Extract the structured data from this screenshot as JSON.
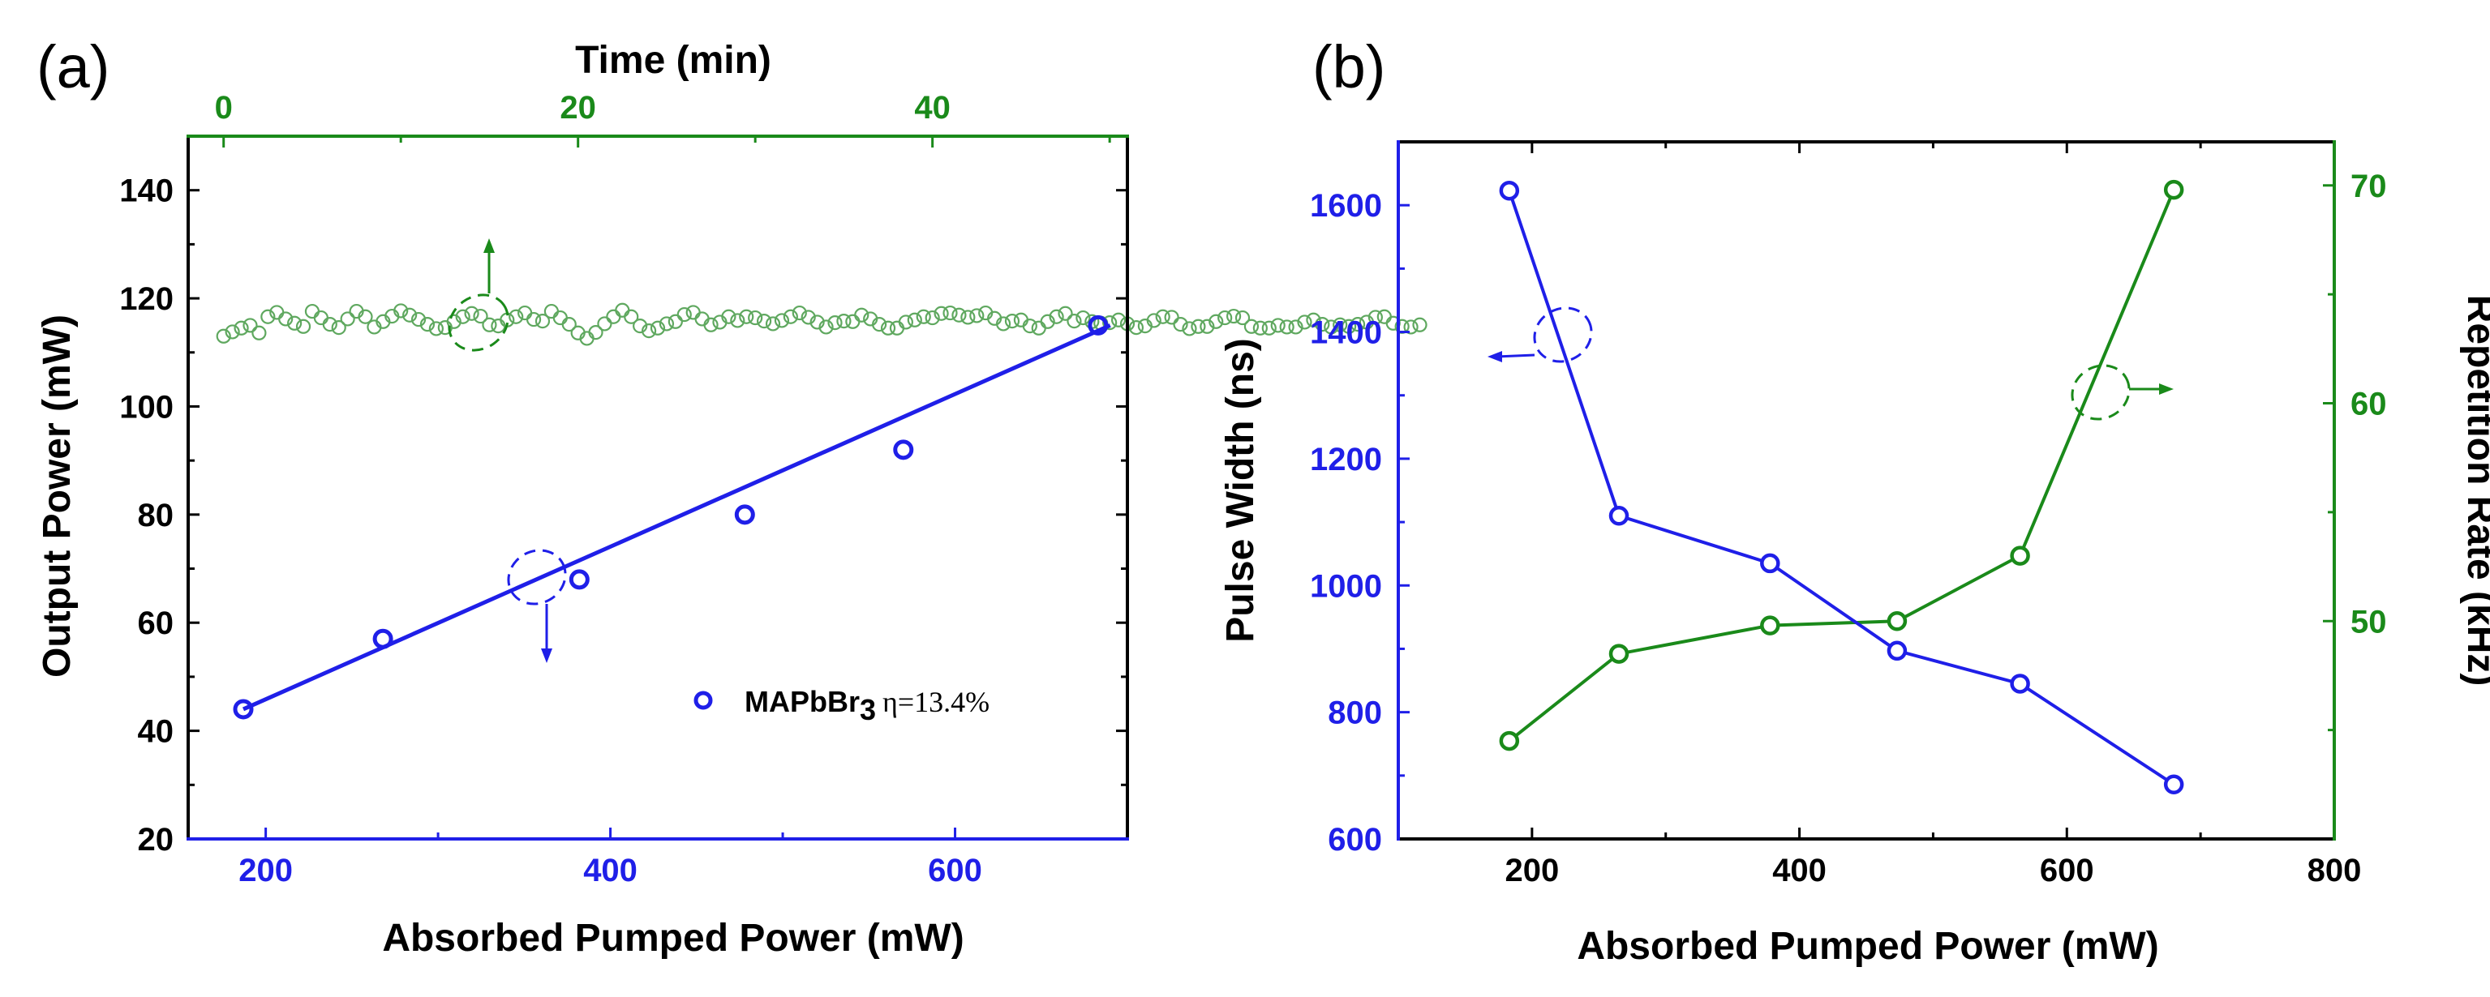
{
  "colors": {
    "blue": "#1f1fe8",
    "green": "#1a8a1a",
    "lightgreen": "#5fa85f",
    "black": "#000000"
  },
  "chart_data": [
    {
      "panel": "(a)",
      "type": "scatter",
      "xlabel": "Absorbed Pumped Power (mW)",
      "ylabel": "Output Power (mW)",
      "top_xlabel": "Time (min)",
      "xlim": [
        155,
        700
      ],
      "ylim": [
        20,
        150
      ],
      "top_xlim": [
        -2,
        51
      ],
      "x_ticks": [
        200,
        400,
        600
      ],
      "x_tick_labels": [
        "200",
        "400",
        "600"
      ],
      "y_ticks": [
        20,
        40,
        60,
        80,
        100,
        120,
        140
      ],
      "y_tick_labels": [
        "20",
        "40",
        "60",
        "80",
        "100",
        "120",
        "140"
      ],
      "top_ticks": [
        0,
        20,
        40
      ],
      "top_tick_labels": [
        "0",
        "20",
        "40"
      ],
      "legend": {
        "name": "MAPbBr",
        "subscript": "3",
        "eta": "η=13.4%"
      },
      "series": [
        {
          "name": "MAPbBr3 output power",
          "axis": "bottom",
          "marker": "circle",
          "x": [
            187,
            268,
            382,
            478,
            570,
            683
          ],
          "y": [
            44,
            57,
            68,
            80,
            92,
            115
          ]
        },
        {
          "name": "Linear fit",
          "axis": "bottom",
          "line": true,
          "x": [
            187,
            690
          ],
          "y": [
            44,
            115
          ]
        },
        {
          "name": "Output power stability vs time",
          "axis": "top",
          "marker": "circle-small",
          "x_start": 0,
          "x_step": 0.5,
          "y": [
            113,
            113.8,
            114.5,
            115,
            113.6,
            116.6,
            117.4,
            116.2,
            115.4,
            114.8,
            117.6,
            116.4,
            115.2,
            114.6,
            116.2,
            117.6,
            116.6,
            114.7,
            115.7,
            116.7,
            117.7,
            116.9,
            116.1,
            115.2,
            114.4,
            114.6,
            115.7,
            116.6,
            117.2,
            116.7,
            115.1,
            114.9,
            116.0,
            116.6,
            117.3,
            116.1,
            115.8,
            117.6,
            116.4,
            115.2,
            113.6,
            112.6,
            113.7,
            115.3,
            116.6,
            117.8,
            116.6,
            114.9,
            114.0,
            114.5,
            115.3,
            115.7,
            117.0,
            117.4,
            116.2,
            115.1,
            115.6,
            116.6,
            115.9,
            116.6,
            116.4,
            115.8,
            115.3,
            115.9,
            116.6,
            117.3,
            116.5,
            115.6,
            114.7,
            115.5,
            115.8,
            115.7,
            116.9,
            116.2,
            115.2,
            114.5,
            114.5,
            115.6,
            116.0,
            116.6,
            116.4,
            117.2,
            117.3,
            116.9,
            116.5,
            116.8,
            117.3,
            116.3,
            115.3,
            115.8,
            116.0,
            114.9,
            114.5,
            115.7,
            116.6,
            117.2,
            115.8,
            116.4,
            115.7,
            115.4,
            115.5,
            116.0,
            115.3,
            114.6,
            114.9,
            115.9,
            116.6,
            116.5,
            115.2,
            114.4,
            114.8,
            114.8,
            115.7,
            116.4,
            116.7,
            116.4,
            114.8,
            114.5,
            114.5,
            115.0,
            114.7,
            114.7,
            115.6,
            116.0,
            115.2,
            114.7,
            115.1,
            114.8,
            115.2,
            115.6,
            116.5,
            116.6,
            115.4,
            114.8,
            114.7,
            115.1
          ]
        }
      ]
    },
    {
      "panel": "(b)",
      "type": "line",
      "xlabel": "Absorbed Pumped Power (mW)",
      "ylabel_left": "Pulse Width (ns)",
      "ylabel_right": "Repetition Rate (kHz)",
      "xlim": [
        100,
        800
      ],
      "ylim_left": [
        600,
        1700
      ],
      "ylim_right": [
        40,
        72
      ],
      "x_ticks": [
        200,
        400,
        600,
        800
      ],
      "x_tick_labels": [
        "200",
        "400",
        "600",
        "800"
      ],
      "y_left_ticks": [
        600,
        800,
        1000,
        1200,
        1400,
        1600
      ],
      "y_left_tick_labels": [
        "600",
        "800",
        "1000",
        "1200",
        "1400",
        "1600"
      ],
      "y_right_ticks": [
        50,
        60,
        70
      ],
      "y_right_tick_labels": [
        "50",
        "60",
        "70"
      ],
      "series": [
        {
          "name": "Pulse Width",
          "axis": "left",
          "x": [
            183,
            265,
            378,
            473,
            565,
            680
          ],
          "values": [
            1623,
            1110,
            1035,
            897,
            845,
            686
          ]
        },
        {
          "name": "Repetition Rate",
          "axis": "right",
          "x": [
            183,
            265,
            378,
            473,
            565,
            680
          ],
          "values": [
            44.5,
            48.5,
            49.8,
            50.0,
            53.0,
            69.8
          ]
        }
      ]
    }
  ]
}
